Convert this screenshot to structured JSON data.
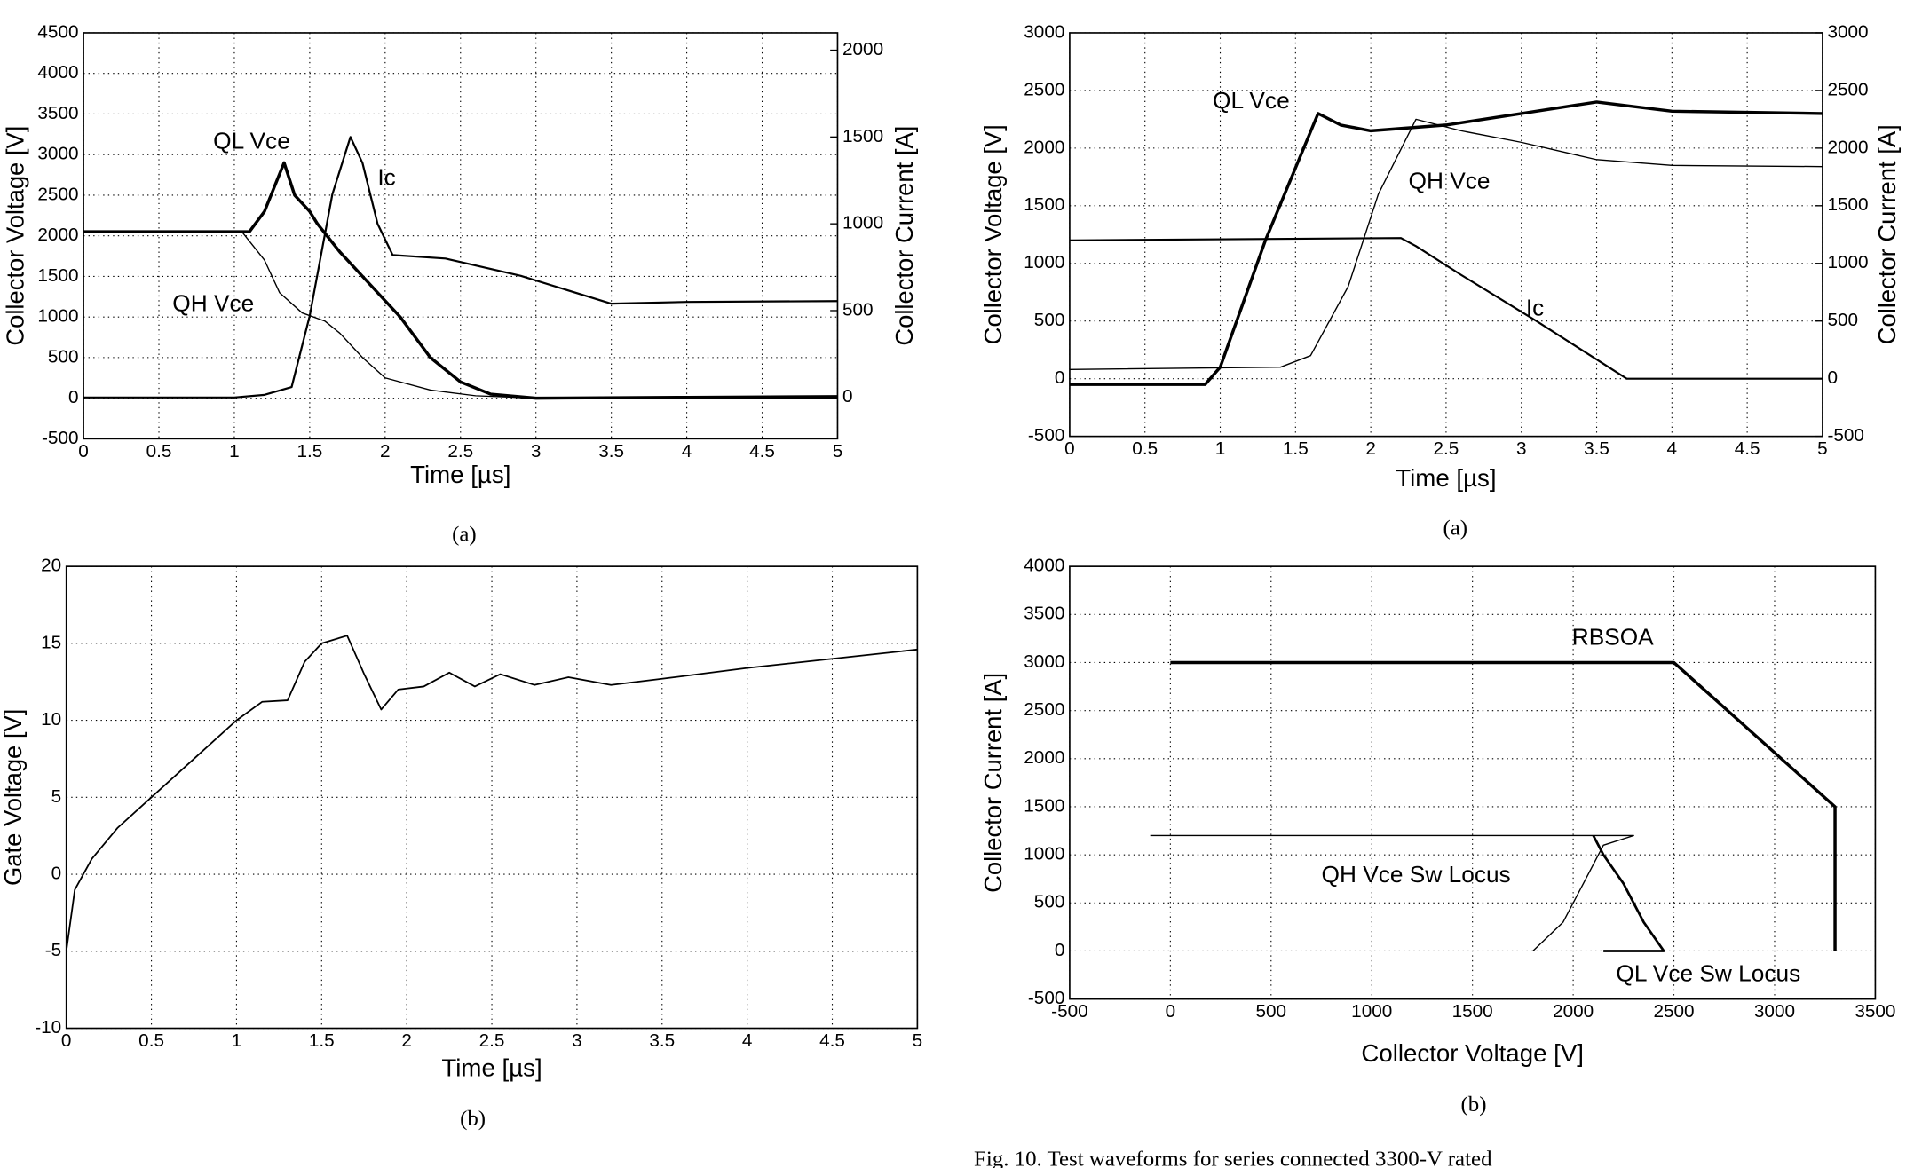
{
  "chart_data": [
    {
      "type": "line",
      "caption": "(a)",
      "xlabel": "Time [µs]",
      "ylabel": "Collector Voltage [V]",
      "y2label": "Collector Current [A]",
      "xlim": [
        0,
        5
      ],
      "xticks": [
        0,
        0.5,
        1,
        1.5,
        2,
        2.5,
        3,
        3.5,
        4,
        4.5,
        5
      ],
      "ylim": [
        -500,
        4500
      ],
      "yticks": [
        -500,
        0,
        500,
        1000,
        1500,
        2000,
        2500,
        3000,
        3500,
        4000,
        4500
      ],
      "y2lim": [
        -238,
        2100
      ],
      "y2ticks": [
        0,
        500,
        1000,
        1500,
        2000
      ],
      "grid": true,
      "annotations": [
        "QL Vce",
        "Ic",
        "QH Vce"
      ],
      "series": [
        {
          "name": "QL Vce",
          "color": "#000000",
          "x": [
            0,
            1.1,
            1.2,
            1.33,
            1.4,
            1.5,
            1.55,
            1.7,
            1.85,
            2.0,
            2.1,
            2.3,
            2.5,
            2.7,
            3.0,
            4.0,
            5.0
          ],
          "values": [
            2050,
            2050,
            2300,
            2900,
            2500,
            2300,
            2150,
            1800,
            1500,
            1200,
            1000,
            500,
            200,
            50,
            0,
            10,
            20
          ]
        },
        {
          "name": "QH Vce",
          "color": "#000000",
          "x": [
            0,
            1.05,
            1.2,
            1.3,
            1.45,
            1.6,
            1.7,
            1.85,
            2.0,
            2.3,
            2.6,
            3.0,
            5.0
          ],
          "values": [
            2050,
            2050,
            1700,
            1300,
            1050,
            950,
            800,
            500,
            250,
            100,
            30,
            0,
            0
          ]
        },
        {
          "name": "Ic",
          "color": "#000000",
          "axis": "y2",
          "x": [
            0,
            1.0,
            1.2,
            1.38,
            1.5,
            1.65,
            1.77,
            1.85,
            1.95,
            2.05,
            2.4,
            2.9,
            3.5,
            4.0,
            5.0
          ],
          "values": [
            0,
            0,
            15,
            60,
            470,
            1170,
            1500,
            1350,
            1000,
            820,
            800,
            700,
            540,
            550,
            555
          ]
        }
      ]
    },
    {
      "type": "line",
      "caption": "(a)",
      "xlabel": "Time [µs]",
      "ylabel": "Collector Voltage [V]",
      "y2label": "Collector Current [A]",
      "xlim": [
        0,
        5
      ],
      "xticks": [
        0,
        0.5,
        1,
        1.5,
        2,
        2.5,
        3,
        3.5,
        4,
        4.5,
        5
      ],
      "ylim": [
        -500,
        3000
      ],
      "yticks": [
        -500,
        0,
        500,
        1000,
        1500,
        2000,
        2500,
        3000
      ],
      "y2lim": [
        -500,
        3000
      ],
      "y2ticks": [
        -500,
        0,
        500,
        1000,
        1500,
        2000,
        2500,
        3000
      ],
      "grid": true,
      "annotations": [
        "QL Vce",
        "QH Vce",
        "Ic"
      ],
      "series": [
        {
          "name": "QL Vce",
          "color": "#000000",
          "x": [
            0,
            0.9,
            1.0,
            1.3,
            1.65,
            1.8,
            2.0,
            2.5,
            3.0,
            3.5,
            4.0,
            5.0
          ],
          "values": [
            -50,
            -50,
            100,
            1200,
            2300,
            2200,
            2150,
            2200,
            2300,
            2400,
            2320,
            2300
          ]
        },
        {
          "name": "QH Vce",
          "color": "#000000",
          "x": [
            0,
            1.4,
            1.6,
            1.85,
            2.05,
            2.3,
            2.6,
            3.0,
            3.5,
            4.0,
            5.0
          ],
          "values": [
            80,
            100,
            200,
            800,
            1600,
            2250,
            2150,
            2050,
            1900,
            1850,
            1840
          ]
        },
        {
          "name": "Ic",
          "color": "#000000",
          "axis": "y2",
          "x": [
            0,
            2.2,
            2.3,
            2.6,
            3.1,
            3.7,
            5.0
          ],
          "values": [
            1200,
            1220,
            1150,
            900,
            500,
            0,
            0
          ]
        }
      ]
    },
    {
      "type": "line",
      "caption": "(b)",
      "xlabel": "Time [µs]",
      "ylabel": "Gate Voltage [V]",
      "xlim": [
        0,
        5
      ],
      "xticks": [
        0,
        0.5,
        1,
        1.5,
        2,
        2.5,
        3,
        3.5,
        4,
        4.5,
        5
      ],
      "ylim": [
        -10,
        20
      ],
      "yticks": [
        -10,
        -5,
        0,
        5,
        10,
        15,
        20
      ],
      "grid": true,
      "series": [
        {
          "name": "Gate Voltage",
          "color": "#000000",
          "x": [
            0,
            0.05,
            0.15,
            0.3,
            0.5,
            0.75,
            1.0,
            1.15,
            1.3,
            1.4,
            1.5,
            1.65,
            1.75,
            1.85,
            1.95,
            2.1,
            2.25,
            2.4,
            2.55,
            2.75,
            2.95,
            3.2,
            3.5,
            4.0,
            4.5,
            5.0
          ],
          "values": [
            -5,
            -1,
            1,
            3,
            5,
            7.5,
            10,
            11.2,
            11.3,
            13.8,
            15,
            15.5,
            13,
            10.7,
            12,
            12.2,
            13.1,
            12.2,
            13,
            12.3,
            12.8,
            12.3,
            12.7,
            13.4,
            14,
            14.6
          ]
        }
      ]
    },
    {
      "type": "line",
      "caption": "(b)",
      "xlabel": "Collector Voltage [V]",
      "ylabel": "Collector Current [A]",
      "xlim": [
        -500,
        3500
      ],
      "xticks": [
        -500,
        0,
        500,
        1000,
        1500,
        2000,
        2500,
        3000,
        3500
      ],
      "ylim": [
        -500,
        4000
      ],
      "yticks": [
        -500,
        0,
        500,
        1000,
        1500,
        2000,
        2500,
        3000,
        3500,
        4000
      ],
      "grid": true,
      "annotations": [
        "RBSOA",
        "QH Vce Sw Locus",
        "QL Vce Sw Locus"
      ],
      "series": [
        {
          "name": "RBSOA",
          "color": "#000000",
          "x": [
            0,
            2500,
            3300,
            3300
          ],
          "values": [
            3000,
            3000,
            1500,
            0
          ]
        },
        {
          "name": "QH Vce Sw Locus",
          "color": "#000000",
          "x": [
            -100,
            2300,
            2150,
            2050,
            1950,
            1800
          ],
          "values": [
            1200,
            1200,
            1100,
            700,
            300,
            0
          ]
        },
        {
          "name": "QL Vce Sw Locus",
          "color": "#000000",
          "x": [
            2100,
            2150,
            2250,
            2350,
            2450,
            2150
          ],
          "values": [
            1200,
            1000,
            700,
            300,
            0,
            0
          ]
        }
      ]
    }
  ],
  "figure_caption": "Fig. 10.   Test waveforms for series connected 3300-V rated"
}
